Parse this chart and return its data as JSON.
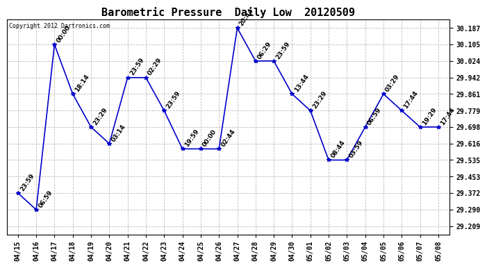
{
  "title": "Barometric Pressure  Daily Low  20120509",
  "copyright": "Copyright 2012 Dartronics.com",
  "x_labels": [
    "04/15",
    "04/16",
    "04/17",
    "04/18",
    "04/19",
    "04/20",
    "04/21",
    "04/22",
    "04/23",
    "04/24",
    "04/25",
    "04/26",
    "04/27",
    "04/28",
    "04/29",
    "04/30",
    "05/01",
    "05/02",
    "05/03",
    "05/04",
    "05/05",
    "05/06",
    "05/07",
    "05/08"
  ],
  "y_values": [
    29.372,
    29.29,
    30.105,
    29.861,
    29.698,
    29.616,
    29.942,
    29.942,
    29.779,
    29.59,
    29.59,
    29.59,
    30.187,
    30.024,
    30.024,
    29.861,
    29.779,
    29.535,
    29.535,
    29.698,
    29.861,
    29.779,
    29.698,
    29.698
  ],
  "time_labels": [
    "23:59",
    "06:59",
    "00:00",
    "18:14",
    "23:29",
    "03:14",
    "23:59",
    "02:29",
    "23:59",
    "19:59",
    "00:00",
    "02:44",
    "20:44",
    "06:29",
    "23:59",
    "13:44",
    "23:29",
    "08:44",
    "03:59",
    "06:59",
    "03:29",
    "17:44",
    "19:29",
    "17:44"
  ],
  "line_color": "#0000cc",
  "marker_color": "#0000cc",
  "background_color": "#ffffff",
  "grid_color": "#aaaaaa",
  "y_ticks": [
    29.209,
    29.29,
    29.372,
    29.453,
    29.535,
    29.616,
    29.698,
    29.779,
    29.861,
    29.942,
    30.024,
    30.105,
    30.187
  ],
  "ylim_min": 29.168,
  "ylim_max": 30.228,
  "title_fontsize": 11,
  "tick_fontsize": 7,
  "label_fontsize": 6.5
}
